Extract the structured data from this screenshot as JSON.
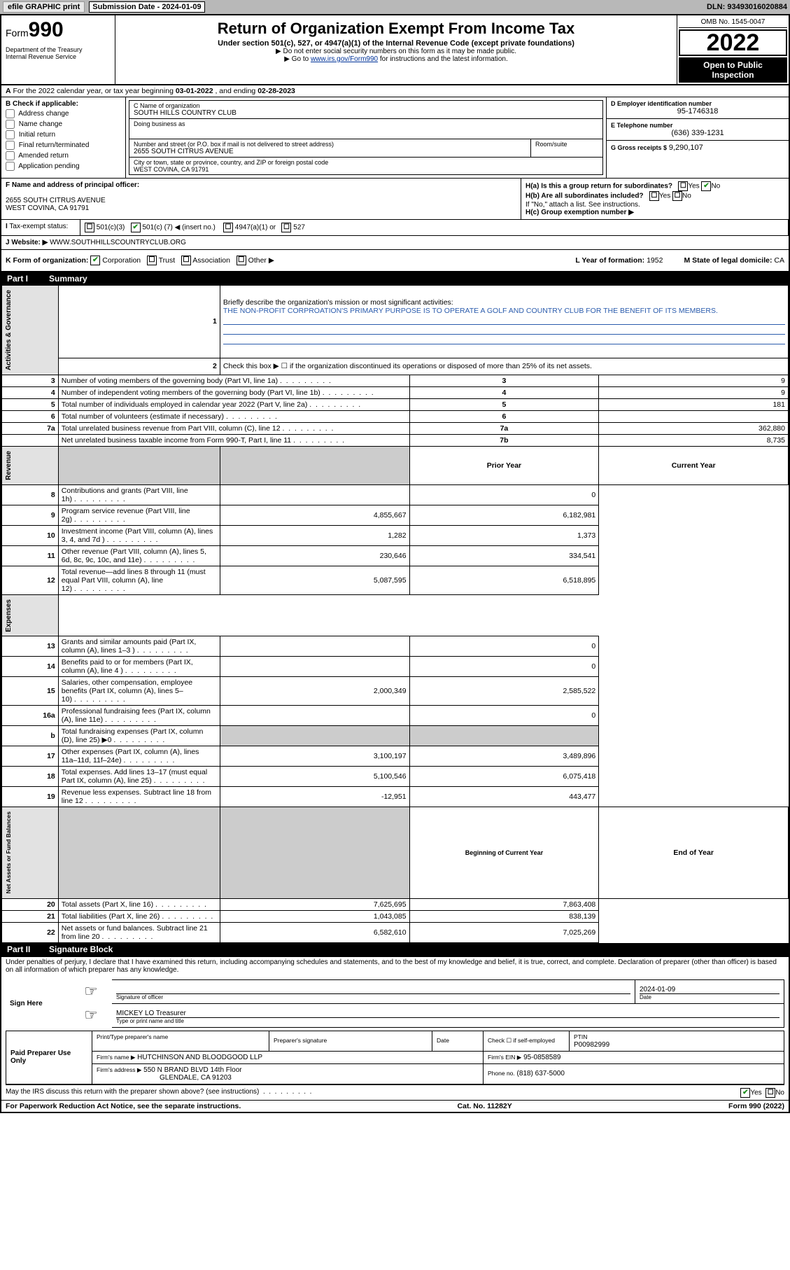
{
  "topbar": {
    "efile": "efile GRAPHIC print",
    "sub_label": "Submission Date - 2024-01-09",
    "dln": "DLN: 93493016020884"
  },
  "header": {
    "form_label": "Form",
    "form_num": "990",
    "title": "Return of Organization Exempt From Income Tax",
    "sub1": "Under section 501(c), 527, or 4947(a)(1) of the Internal Revenue Code (except private foundations)",
    "sub2": "▶ Do not enter social security numbers on this form as it may be made public.",
    "sub3_pre": "▶ Go to ",
    "sub3_link": "www.irs.gov/Form990",
    "sub3_post": " for instructions and the latest information.",
    "dept": "Department of the Treasury\nInternal Revenue Service",
    "omb": "OMB No. 1545-0047",
    "year": "2022",
    "open": "Open to Public Inspection"
  },
  "rowA": {
    "text_pre": "For the 2022 calendar year, or tax year beginning ",
    "begin": "03-01-2022",
    "mid": " , and ending ",
    "end": "02-28-2023"
  },
  "colB": {
    "title": "B Check if applicable:",
    "items": [
      "Address change",
      "Name change",
      "Initial return",
      "Final return/terminated",
      "Amended return",
      "Application pending"
    ]
  },
  "colC": {
    "name_lbl": "C Name of organization",
    "name": "SOUTH HILLS COUNTRY CLUB",
    "dba_lbl": "Doing business as",
    "street_lbl": "Number and street (or P.O. box if mail is not delivered to street address)",
    "suite_lbl": "Room/suite",
    "street": "2655 SOUTH CITRUS AVENUE",
    "city_lbl": "City or town, state or province, country, and ZIP or foreign postal code",
    "city": "WEST COVINA, CA  91791"
  },
  "colD": {
    "ein_lbl": "D Employer identification number",
    "ein": "95-1746318",
    "phone_lbl": "E Telephone number",
    "phone": "(636) 339-1231",
    "gross_lbl": "G Gross receipts $",
    "gross": "9,290,107"
  },
  "rowF": {
    "f_lbl": "F Name and address of principal officer:",
    "f_addr1": "2655 SOUTH CITRUS AVENUE",
    "f_addr2": "WEST COVINA, CA  91791",
    "ha": "H(a)  Is this a group return for subordinates?",
    "hb": "H(b)  Are all subordinates included?",
    "hb_note": "If \"No,\" attach a list. See instructions.",
    "hc": "H(c)  Group exemption number ▶"
  },
  "rowI": {
    "lbl": "Tax-exempt status:",
    "opt1": "501(c)(3)",
    "opt2_pre": "501(c) (",
    "opt2_num": "7",
    "opt2_post": ") ◀ (insert no.)",
    "opt3": "4947(a)(1) or",
    "opt4": "527"
  },
  "rowJ": {
    "lbl": "Website: ▶",
    "val": "WWW.SOUTHHILLSCOUNTRYCLUB.ORG"
  },
  "rowK": {
    "lbl": "K Form of organization:",
    "opts": [
      "Corporation",
      "Trust",
      "Association",
      "Other ▶"
    ],
    "l_lbl": "L Year of formation:",
    "l_val": "1952",
    "m_lbl": "M State of legal domicile:",
    "m_val": "CA"
  },
  "part1": {
    "num": "Part I",
    "title": "Summary",
    "line1_lbl": "Briefly describe the organization's mission or most significant activities:",
    "line1_val": "THE NON-PROFIT CORPROATION'S PRIMARY PURPOSE IS TO OPERATE A GOLF AND COUNTRY CLUB FOR THE BENEFIT OF ITS MEMBERS.",
    "line2": "Check this box ▶ ☐  if the organization discontinued its operations or disposed of more than 25% of its net assets.",
    "sections": {
      "gov": "Activities & Governance",
      "rev": "Revenue",
      "exp": "Expenses",
      "net": "Net Assets or Fund Balances"
    },
    "rows": [
      {
        "n": "3",
        "lbl": "Number of voting members of the governing body (Part VI, line 1a)",
        "box": "3",
        "v": "9"
      },
      {
        "n": "4",
        "lbl": "Number of independent voting members of the governing body (Part VI, line 1b)",
        "box": "4",
        "v": "9"
      },
      {
        "n": "5",
        "lbl": "Total number of individuals employed in calendar year 2022 (Part V, line 2a)",
        "box": "5",
        "v": "181"
      },
      {
        "n": "6",
        "lbl": "Total number of volunteers (estimate if necessary)",
        "box": "6",
        "v": ""
      },
      {
        "n": "7a",
        "lbl": "Total unrelated business revenue from Part VIII, column (C), line 12",
        "box": "7a",
        "v": "362,880"
      },
      {
        "n": "",
        "lbl": "Net unrelated business taxable income from Form 990-T, Part I, line 11",
        "box": "7b",
        "v": "8,735"
      }
    ],
    "col_headers": {
      "prior": "Prior Year",
      "current": "Current Year"
    },
    "rev_rows": [
      {
        "n": "8",
        "lbl": "Contributions and grants (Part VIII, line 1h)",
        "p": "",
        "c": "0"
      },
      {
        "n": "9",
        "lbl": "Program service revenue (Part VIII, line 2g)",
        "p": "4,855,667",
        "c": "6,182,981"
      },
      {
        "n": "10",
        "lbl": "Investment income (Part VIII, column (A), lines 3, 4, and 7d )",
        "p": "1,282",
        "c": "1,373"
      },
      {
        "n": "11",
        "lbl": "Other revenue (Part VIII, column (A), lines 5, 6d, 8c, 9c, 10c, and 11e)",
        "p": "230,646",
        "c": "334,541"
      },
      {
        "n": "12",
        "lbl": "Total revenue—add lines 8 through 11 (must equal Part VIII, column (A), line 12)",
        "p": "5,087,595",
        "c": "6,518,895"
      }
    ],
    "exp_rows": [
      {
        "n": "13",
        "lbl": "Grants and similar amounts paid (Part IX, column (A), lines 1–3 )",
        "p": "",
        "c": "0"
      },
      {
        "n": "14",
        "lbl": "Benefits paid to or for members (Part IX, column (A), line 4 )",
        "p": "",
        "c": "0"
      },
      {
        "n": "15",
        "lbl": "Salaries, other compensation, employee benefits (Part IX, column (A), lines 5–10)",
        "p": "2,000,349",
        "c": "2,585,522"
      },
      {
        "n": "16a",
        "lbl": "Professional fundraising fees (Part IX, column (A), line 11e)",
        "p": "",
        "c": "0"
      },
      {
        "n": "b",
        "lbl": "Total fundraising expenses (Part IX, column (D), line 25) ▶0",
        "p": "shaded",
        "c": "shaded"
      },
      {
        "n": "17",
        "lbl": "Other expenses (Part IX, column (A), lines 11a–11d, 11f–24e)",
        "p": "3,100,197",
        "c": "3,489,896"
      },
      {
        "n": "18",
        "lbl": "Total expenses. Add lines 13–17 (must equal Part IX, column (A), line 25)",
        "p": "5,100,546",
        "c": "6,075,418"
      },
      {
        "n": "19",
        "lbl": "Revenue less expenses. Subtract line 18 from line 12",
        "p": "-12,951",
        "c": "443,477"
      }
    ],
    "net_headers": {
      "beg": "Beginning of Current Year",
      "end": "End of Year"
    },
    "net_rows": [
      {
        "n": "20",
        "lbl": "Total assets (Part X, line 16)",
        "p": "7,625,695",
        "c": "7,863,408"
      },
      {
        "n": "21",
        "lbl": "Total liabilities (Part X, line 26)",
        "p": "1,043,085",
        "c": "838,139"
      },
      {
        "n": "22",
        "lbl": "Net assets or fund balances. Subtract line 21 from line 20",
        "p": "6,582,610",
        "c": "7,025,269"
      }
    ]
  },
  "part2": {
    "num": "Part II",
    "title": "Signature Block",
    "decl": "Under penalties of perjury, I declare that I have examined this return, including accompanying schedules and statements, and to the best of my knowledge and belief, it is true, correct, and complete. Declaration of preparer (other than officer) is based on all information of which preparer has any knowledge.",
    "sign_here": "Sign Here",
    "sig_officer_lbl": "Signature of officer",
    "sig_date": "2024-01-09",
    "sig_date_lbl": "Date",
    "officer_line": "MICKEY LO Treasurer",
    "officer_lbl": "Type or print name and title",
    "paid": "Paid Preparer Use Only",
    "prep_cols": [
      "Print/Type preparer's name",
      "Preparer's signature",
      "Date"
    ],
    "ptin_lbl": "PTIN",
    "ptin": "P00982999",
    "check_self": "Check ☐ if self-employed",
    "firm_name_lbl": "Firm's name    ▶",
    "firm_name": "HUTCHINSON AND BLOODGOOD LLP",
    "firm_ein_lbl": "Firm's EIN ▶",
    "firm_ein": "95-0858589",
    "firm_addr_lbl": "Firm's address ▶",
    "firm_addr1": "550 N BRAND BLVD 14th Floor",
    "firm_addr2": "GLENDALE, CA  91203",
    "firm_phone_lbl": "Phone no.",
    "firm_phone": "(818) 637-5000",
    "may_irs": "May the IRS discuss this return with the preparer shown above? (see instructions)"
  },
  "footer": {
    "left": "For Paperwork Reduction Act Notice, see the separate instructions.",
    "mid": "Cat. No. 11282Y",
    "right": "Form 990 (2022)"
  }
}
